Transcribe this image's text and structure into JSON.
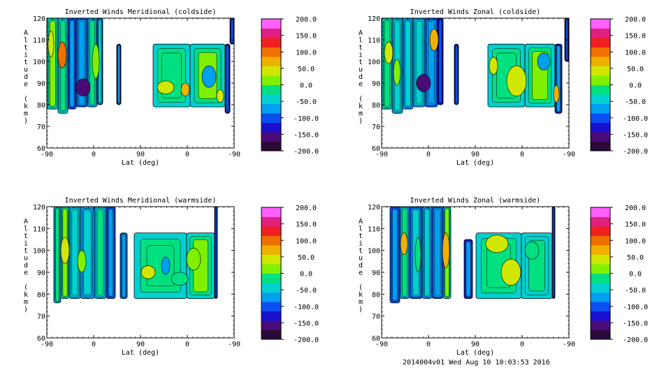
{
  "chart_data": [
    {
      "type": "heatmap",
      "id": "meridional-coldside",
      "title": "Inverted Winds Meridional (coldside)",
      "xlabel": "Lat (deg)",
      "ylabel": "Altitude (km)",
      "ylabel_chars": [
        "A",
        "l",
        "t",
        "i",
        "t",
        "u",
        "d",
        "e",
        "",
        "(",
        "k",
        "m",
        ")"
      ],
      "x_ticks": [
        "-90",
        "0",
        "90",
        "0",
        "-90"
      ],
      "y_ticks": [
        "60",
        "70",
        "80",
        "90",
        "100",
        "110",
        "120"
      ],
      "ylim": [
        60,
        120
      ],
      "colorbar_ticks": [
        "200.0",
        "150.0",
        "100.0",
        "50.0",
        "0.0",
        "-50.0",
        "-100.0",
        "-150.0",
        "-200.0"
      ],
      "colorbar_range": [
        -200,
        200
      ],
      "regions": [
        {
          "x0": 0.5,
          "x1": 16,
          "y0": 78,
          "y1": 120,
          "value": -30
        },
        {
          "x0": 16,
          "x1": 30,
          "y0": 76,
          "y1": 120,
          "value": -55
        },
        {
          "x0": 30,
          "x1": 42,
          "y0": 78,
          "y1": 120,
          "value": -110
        },
        {
          "x0": 42,
          "x1": 58,
          "y0": 79,
          "y1": 120,
          "value": -95
        },
        {
          "x0": 58,
          "x1": 72,
          "y0": 79,
          "y1": 120,
          "value": -60
        },
        {
          "x0": 72,
          "x1": 80,
          "y0": 80,
          "y1": 120,
          "value": -90
        },
        {
          "x0": 100,
          "x1": 106,
          "y0": 80,
          "y1": 108,
          "value": -120
        },
        {
          "x0": 152,
          "x1": 205,
          "y0": 79,
          "y1": 108,
          "value": -45
        },
        {
          "x0": 205,
          "x1": 255,
          "y0": 79,
          "y1": 108,
          "value": -30
        },
        {
          "x0": 255,
          "x1": 262,
          "y0": 76,
          "y1": 108,
          "value": -130
        },
        {
          "x0": 262,
          "x1": 268,
          "y0": 108,
          "y1": 120,
          "value": -130
        }
      ],
      "blobs": [
        {
          "x": 22,
          "y": 103,
          "rx": 6,
          "ry": 6,
          "value": 90
        },
        {
          "x": 6,
          "y": 108,
          "rx": 4,
          "ry": 6,
          "value": 30
        },
        {
          "x": 52,
          "y": 88,
          "rx": 10,
          "ry": 4,
          "value": -160
        },
        {
          "x": 70,
          "y": 100,
          "rx": 5,
          "ry": 8,
          "value": 20
        },
        {
          "x": 170,
          "y": 88,
          "rx": 12,
          "ry": 3,
          "value": 40
        },
        {
          "x": 198,
          "y": 87,
          "rx": 6,
          "ry": 3,
          "value": 60
        },
        {
          "x": 232,
          "y": 93,
          "rx": 10,
          "ry": 5,
          "value": -60
        },
        {
          "x": 248,
          "y": 84,
          "rx": 5,
          "ry": 3,
          "value": 40
        }
      ]
    },
    {
      "type": "heatmap",
      "id": "zonal-coldside",
      "title": "Inverted Winds Zonal (coldside)",
      "xlabel": "Lat (deg)",
      "ylabel": "Altitude (km)",
      "ylabel_chars": [
        "A",
        "l",
        "t",
        "i",
        "t",
        "u",
        "d",
        "e",
        "",
        "(",
        "k",
        "m",
        ")"
      ],
      "x_ticks": [
        "-90",
        "0",
        "90",
        "0",
        "-90"
      ],
      "y_ticks": [
        "60",
        "70",
        "80",
        "90",
        "100",
        "110",
        "120"
      ],
      "ylim": [
        60,
        120
      ],
      "colorbar_ticks": [
        "200.0",
        "150.0",
        "100.0",
        "50.0",
        "0.0",
        "-50.0",
        "-100.0",
        "-150.0",
        "-200.0"
      ],
      "colorbar_range": [
        -200,
        200
      ],
      "regions": [
        {
          "x0": 0.5,
          "x1": 15,
          "y0": 78,
          "y1": 120,
          "value": -40
        },
        {
          "x0": 15,
          "x1": 30,
          "y0": 76,
          "y1": 120,
          "value": -70
        },
        {
          "x0": 30,
          "x1": 45,
          "y0": 78,
          "y1": 120,
          "value": -80
        },
        {
          "x0": 45,
          "x1": 62,
          "y0": 79,
          "y1": 120,
          "value": -75
        },
        {
          "x0": 62,
          "x1": 80,
          "y0": 79,
          "y1": 120,
          "value": -100
        },
        {
          "x0": 80,
          "x1": 88,
          "y0": 80,
          "y1": 120,
          "value": -140
        },
        {
          "x0": 104,
          "x1": 110,
          "y0": 80,
          "y1": 108,
          "value": -130
        },
        {
          "x0": 152,
          "x1": 205,
          "y0": 79,
          "y1": 108,
          "value": -40
        },
        {
          "x0": 205,
          "x1": 248,
          "y0": 79,
          "y1": 108,
          "value": -30
        },
        {
          "x0": 248,
          "x1": 258,
          "y0": 76,
          "y1": 108,
          "value": -120
        },
        {
          "x0": 262,
          "x1": 268,
          "y0": 100,
          "y1": 120,
          "value": -140
        }
      ],
      "blobs": [
        {
          "x": 10,
          "y": 104,
          "rx": 6,
          "ry": 5,
          "value": 30
        },
        {
          "x": 22,
          "y": 95,
          "rx": 5,
          "ry": 6,
          "value": 10
        },
        {
          "x": 60,
          "y": 90,
          "rx": 10,
          "ry": 4,
          "value": -170
        },
        {
          "x": 75,
          "y": 110,
          "rx": 6,
          "ry": 5,
          "value": 60
        },
        {
          "x": 160,
          "y": 98,
          "rx": 6,
          "ry": 4,
          "value": 30
        },
        {
          "x": 193,
          "y": 91,
          "rx": 14,
          "ry": 7,
          "value": 45
        },
        {
          "x": 232,
          "y": 100,
          "rx": 9,
          "ry": 4,
          "value": -60
        },
        {
          "x": 250,
          "y": 85,
          "rx": 4,
          "ry": 4,
          "value": 80
        }
      ]
    },
    {
      "type": "heatmap",
      "id": "meridional-warmside",
      "title": "Inverted Winds Meridional (warmside)",
      "xlabel": "Lat (deg)",
      "ylabel": "Altitude (km)",
      "ylabel_chars": [
        "A",
        "l",
        "t",
        "i",
        "t",
        "u",
        "d",
        "e",
        "",
        "(",
        "k",
        "m",
        ")"
      ],
      "x_ticks": [
        "-90",
        "0",
        "90",
        "0",
        "-90"
      ],
      "y_ticks": [
        "60",
        "70",
        "80",
        "90",
        "100",
        "110",
        "120"
      ],
      "ylim": [
        60,
        120
      ],
      "colorbar_ticks": [
        "200.0",
        "150.0",
        "100.0",
        "50.0",
        "0.0",
        "-50.0",
        "-100.0",
        "-150.0",
        "-200.0"
      ],
      "colorbar_range": [
        -200,
        200
      ],
      "regions": [
        {
          "x0": 10,
          "x1": 20,
          "y0": 76,
          "y1": 120,
          "value": -60
        },
        {
          "x0": 20,
          "x1": 32,
          "y0": 78,
          "y1": 120,
          "value": -30
        },
        {
          "x0": 32,
          "x1": 48,
          "y0": 78,
          "y1": 120,
          "value": -70
        },
        {
          "x0": 48,
          "x1": 68,
          "y0": 78,
          "y1": 120,
          "value": -80
        },
        {
          "x0": 68,
          "x1": 85,
          "y0": 78,
          "y1": 120,
          "value": -60
        },
        {
          "x0": 85,
          "x1": 98,
          "y0": 78,
          "y1": 120,
          "value": -110
        },
        {
          "x0": 105,
          "x1": 115,
          "y0": 78,
          "y1": 108,
          "value": -100
        },
        {
          "x0": 125,
          "x1": 200,
          "y0": 78,
          "y1": 108,
          "value": -40
        },
        {
          "x0": 200,
          "x1": 240,
          "y0": 78,
          "y1": 108,
          "value": -35
        },
        {
          "x0": 240,
          "x1": 244,
          "y0": 78,
          "y1": 120,
          "value": -150
        }
      ],
      "blobs": [
        {
          "x": 26,
          "y": 100,
          "rx": 6,
          "ry": 6,
          "value": 50
        },
        {
          "x": 50,
          "y": 95,
          "rx": 6,
          "ry": 5,
          "value": 10
        },
        {
          "x": 145,
          "y": 90,
          "rx": 10,
          "ry": 3,
          "value": 40
        },
        {
          "x": 170,
          "y": 93,
          "rx": 6,
          "ry": 4,
          "value": -60
        },
        {
          "x": 210,
          "y": 96,
          "rx": 10,
          "ry": 5,
          "value": 25
        },
        {
          "x": 190,
          "y": 87,
          "rx": 12,
          "ry": 3,
          "value": -20
        }
      ]
    },
    {
      "type": "heatmap",
      "id": "zonal-warmside",
      "title": "Inverted Winds Zonal (warmside)",
      "xlabel": "Lat (deg)",
      "ylabel": "Altitude (km)",
      "ylabel_chars": [
        "A",
        "l",
        "t",
        "i",
        "t",
        "u",
        "d",
        "e",
        "",
        "(",
        "k",
        "m",
        ")"
      ],
      "x_ticks": [
        "-90",
        "0",
        "90",
        "0",
        "-90"
      ],
      "y_ticks": [
        "60",
        "70",
        "80",
        "90",
        "100",
        "110",
        "120"
      ],
      "ylim": [
        60,
        120
      ],
      "colorbar_ticks": [
        "200.0",
        "150.0",
        "100.0",
        "50.0",
        "0.0",
        "-50.0",
        "-100.0",
        "-150.0",
        "-200.0"
      ],
      "colorbar_range": [
        -200,
        200
      ],
      "regions": [
        {
          "x0": 12,
          "x1": 26,
          "y0": 76,
          "y1": 120,
          "value": -110
        },
        {
          "x0": 26,
          "x1": 40,
          "y0": 78,
          "y1": 120,
          "value": -60
        },
        {
          "x0": 40,
          "x1": 58,
          "y0": 78,
          "y1": 120,
          "value": -90
        },
        {
          "x0": 58,
          "x1": 72,
          "y0": 78,
          "y1": 120,
          "value": -80
        },
        {
          "x0": 72,
          "x1": 88,
          "y0": 78,
          "y1": 120,
          "value": -100
        },
        {
          "x0": 88,
          "x1": 99,
          "y0": 78,
          "y1": 120,
          "value": -30
        },
        {
          "x0": 118,
          "x1": 130,
          "y0": 78,
          "y1": 105,
          "value": -120
        },
        {
          "x0": 135,
          "x1": 200,
          "y0": 78,
          "y1": 108,
          "value": -40
        },
        {
          "x0": 200,
          "x1": 244,
          "y0": 78,
          "y1": 108,
          "value": -50
        },
        {
          "x0": 244,
          "x1": 248,
          "y0": 78,
          "y1": 120,
          "value": -150
        }
      ],
      "blobs": [
        {
          "x": 32,
          "y": 103,
          "rx": 5,
          "ry": 5,
          "value": 60
        },
        {
          "x": 52,
          "y": 98,
          "rx": 4,
          "ry": 8,
          "value": -10
        },
        {
          "x": 92,
          "y": 100,
          "rx": 5,
          "ry": 8,
          "value": 70
        },
        {
          "x": 165,
          "y": 103,
          "rx": 16,
          "ry": 4,
          "value": 40
        },
        {
          "x": 185,
          "y": 90,
          "rx": 14,
          "ry": 6,
          "value": 30
        },
        {
          "x": 215,
          "y": 100,
          "rx": 10,
          "ry": 4,
          "value": -20
        }
      ]
    }
  ],
  "footer": {
    "stamp": "2014004v01 Wed Aug 10 10:03:53 2016"
  },
  "colors": {
    "colormap": [
      "#2a0a38",
      "#4a0a78",
      "#1a10d0",
      "#0a50f0",
      "#00a0f0",
      "#00d0d0",
      "#00e080",
      "#80f000",
      "#d0e800",
      "#f0b000",
      "#f07000",
      "#f02020",
      "#e02080",
      "#ff60ff"
    ]
  }
}
